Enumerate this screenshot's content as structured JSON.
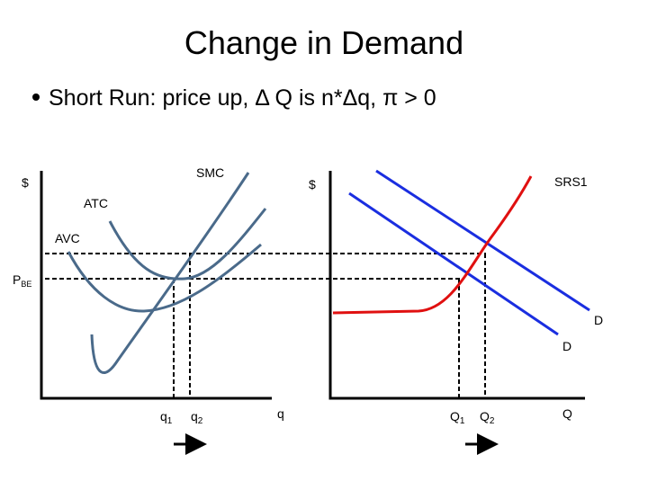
{
  "header": {
    "title": "Change in Demand",
    "bullet": "Short Run: price up, Δ Q is n*Δq, π > 0"
  },
  "firm_graph": {
    "y_axis": "$",
    "smc": "SMC",
    "atc": "ATC",
    "avc": "AVC",
    "price": {
      "text": "P",
      "sub": "BE"
    },
    "q1": {
      "text": "q",
      "sub": "1"
    },
    "q2": {
      "text": "q",
      "sub": "2"
    },
    "x_axis": "q"
  },
  "market_graph": {
    "y_axis": "$",
    "supply": "SRS1",
    "demand_new": "D",
    "demand_old": "D",
    "q1": {
      "text": "Q",
      "sub": "1"
    },
    "q2": {
      "text": "Q",
      "sub": "2"
    },
    "x_axis": "Q"
  }
}
